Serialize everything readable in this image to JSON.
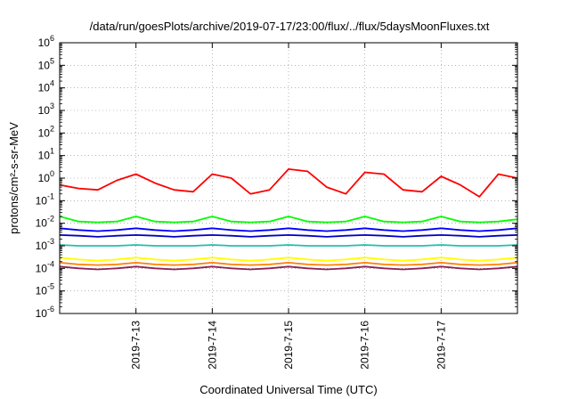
{
  "chart_data": {
    "type": "line",
    "title": "/data/run/goesPlots/archive/2019-07-17/23:00/flux/../flux/5daysMoonFluxes.txt",
    "xlabel": "Coordinated Universal Time (UTC)",
    "ylabel": "protons/cm²-s-sr-MeV",
    "yscale": "log",
    "ylim": [
      1e-06,
      1000000
    ],
    "yticks": [
      {
        "value": 1e-06,
        "base": "10",
        "exp": "-6"
      },
      {
        "value": 1e-05,
        "base": "10",
        "exp": "-5"
      },
      {
        "value": 0.0001,
        "base": "10",
        "exp": "-4"
      },
      {
        "value": 0.001,
        "base": "10",
        "exp": "-3"
      },
      {
        "value": 0.01,
        "base": "10",
        "exp": "-2"
      },
      {
        "value": 0.1,
        "base": "10",
        "exp": "-1"
      },
      {
        "value": 1,
        "base": "10",
        "exp": "0"
      },
      {
        "value": 10,
        "base": "10",
        "exp": "1"
      },
      {
        "value": 100,
        "base": "10",
        "exp": "2"
      },
      {
        "value": 1000,
        "base": "10",
        "exp": "3"
      },
      {
        "value": 10000,
        "base": "10",
        "exp": "4"
      },
      {
        "value": 100000,
        "base": "10",
        "exp": "5"
      },
      {
        "value": 1000000,
        "base": "10",
        "exp": "6"
      }
    ],
    "xlim": [
      "2019-07-12 00:00",
      "2019-07-18 00:00"
    ],
    "xticks": [
      {
        "value": "2019-07-13 00:00",
        "label": "2019-7-13"
      },
      {
        "value": "2019-07-14 00:00",
        "label": "2019-7-14"
      },
      {
        "value": "2019-07-15 00:00",
        "label": "2019-7-15"
      },
      {
        "value": "2019-07-16 00:00",
        "label": "2019-7-16"
      },
      {
        "value": "2019-07-17 00:00",
        "label": "2019-7-17"
      }
    ],
    "grid": true,
    "legend": "none",
    "x": [
      "2019-07-12 00:00",
      "2019-07-12 06:00",
      "2019-07-12 12:00",
      "2019-07-12 18:00",
      "2019-07-13 00:00",
      "2019-07-13 06:00",
      "2019-07-13 12:00",
      "2019-07-13 18:00",
      "2019-07-14 00:00",
      "2019-07-14 06:00",
      "2019-07-14 12:00",
      "2019-07-14 18:00",
      "2019-07-15 00:00",
      "2019-07-15 06:00",
      "2019-07-15 12:00",
      "2019-07-15 18:00",
      "2019-07-16 00:00",
      "2019-07-16 06:00",
      "2019-07-16 12:00",
      "2019-07-16 18:00",
      "2019-07-17 00:00",
      "2019-07-17 06:00",
      "2019-07-17 12:00",
      "2019-07-17 18:00",
      "2019-07-18 00:00"
    ],
    "series": [
      {
        "color": "#ff0000",
        "values": [
          0.5,
          0.35,
          0.3,
          0.8,
          1.5,
          0.6,
          0.3,
          0.25,
          1.5,
          1.0,
          0.2,
          0.3,
          2.5,
          2.0,
          0.4,
          0.2,
          1.8,
          1.5,
          0.3,
          0.25,
          1.2,
          0.5,
          0.15,
          1.5,
          1.0
        ]
      },
      {
        "color": "#00ff00",
        "values": [
          0.02,
          0.012,
          0.011,
          0.012,
          0.02,
          0.012,
          0.011,
          0.012,
          0.02,
          0.012,
          0.011,
          0.012,
          0.02,
          0.012,
          0.011,
          0.012,
          0.02,
          0.012,
          0.011,
          0.012,
          0.02,
          0.012,
          0.011,
          0.012,
          0.015
        ]
      },
      {
        "color": "#0000ff",
        "values": [
          0.006,
          0.005,
          0.0045,
          0.005,
          0.006,
          0.005,
          0.0045,
          0.005,
          0.006,
          0.005,
          0.0045,
          0.005,
          0.006,
          0.005,
          0.0045,
          0.005,
          0.006,
          0.005,
          0.0045,
          0.005,
          0.006,
          0.005,
          0.0045,
          0.005,
          0.006
        ]
      },
      {
        "color": "#0000c8",
        "values": [
          0.003,
          0.0028,
          0.0025,
          0.0028,
          0.003,
          0.0028,
          0.0025,
          0.0028,
          0.003,
          0.0028,
          0.0025,
          0.0028,
          0.003,
          0.0028,
          0.0025,
          0.0028,
          0.003,
          0.0028,
          0.0025,
          0.0028,
          0.003,
          0.0028,
          0.0025,
          0.0028,
          0.003
        ]
      },
      {
        "color": "#20c0b0",
        "values": [
          0.0011,
          0.001,
          0.001,
          0.001,
          0.0011,
          0.001,
          0.001,
          0.001,
          0.0011,
          0.001,
          0.001,
          0.001,
          0.0011,
          0.001,
          0.001,
          0.001,
          0.0011,
          0.001,
          0.001,
          0.001,
          0.0011,
          0.001,
          0.001,
          0.001,
          0.0011
        ]
      },
      {
        "color": "#ffff00",
        "values": [
          0.0003,
          0.00025,
          0.00022,
          0.00025,
          0.0003,
          0.00025,
          0.00022,
          0.00025,
          0.0003,
          0.00025,
          0.00022,
          0.00025,
          0.0003,
          0.00025,
          0.00022,
          0.00025,
          0.0003,
          0.00025,
          0.00022,
          0.00025,
          0.0003,
          0.00025,
          0.00022,
          0.00025,
          0.0003
        ]
      },
      {
        "color": "#ff8000",
        "values": [
          0.00018,
          0.00015,
          0.00014,
          0.00015,
          0.00018,
          0.00015,
          0.00014,
          0.00015,
          0.00018,
          0.00015,
          0.00014,
          0.00015,
          0.00018,
          0.00015,
          0.00014,
          0.00015,
          0.00018,
          0.00015,
          0.00014,
          0.00015,
          0.00018,
          0.00015,
          0.00014,
          0.00015,
          0.00018
        ]
      },
      {
        "color": "#8b2252",
        "values": [
          0.00012,
          0.0001,
          9e-05,
          0.0001,
          0.00012,
          0.0001,
          9e-05,
          0.0001,
          0.00012,
          0.0001,
          9e-05,
          0.0001,
          0.00012,
          0.0001,
          9e-05,
          0.0001,
          0.00012,
          0.0001,
          9e-05,
          0.0001,
          0.00012,
          0.0001,
          9e-05,
          0.0001,
          0.00012
        ]
      }
    ]
  }
}
